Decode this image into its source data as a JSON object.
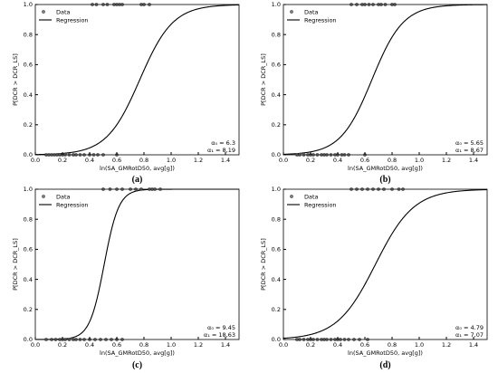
{
  "chart_data": [
    {
      "type": "line",
      "panel_label": "(a)",
      "ylabel": "P[DCR > DCR_LS]",
      "xlabel": "ln(SA_GMRotD50, avg[g])",
      "xlim": [
        0,
        1.5
      ],
      "ylim": [
        0,
        1.0
      ],
      "xticks": [
        "0.0",
        "0.2",
        "0.4",
        "0.6",
        "0.8",
        "1.0",
        "1.2",
        "1.4"
      ],
      "yticks": [
        "0.0",
        "0.2",
        "0.4",
        "0.6",
        "0.8",
        "1.0"
      ],
      "legend": [
        "Data",
        "Regression"
      ],
      "legend_position": "top-left",
      "coef_text": [
        "α₀ = 6.3",
        "α₁ = 8,19"
      ],
      "series": [
        {
          "name": "Data",
          "kind": "scatter",
          "y": 0,
          "x": [
            0.08,
            0.1,
            0.12,
            0.14,
            0.16,
            0.18,
            0.2,
            0.22,
            0.25,
            0.28,
            0.3,
            0.33,
            0.36,
            0.4,
            0.43,
            0.46,
            0.5,
            0.6
          ]
        },
        {
          "name": "Data",
          "kind": "scatter",
          "y": 1,
          "x": [
            0.42,
            0.45,
            0.5,
            0.53,
            0.58,
            0.6,
            0.62,
            0.64,
            0.78,
            0.8,
            0.84
          ]
        },
        {
          "name": "Regression",
          "kind": "logistic",
          "a0": 6.3,
          "a1": 8.19
        }
      ]
    },
    {
      "type": "line",
      "panel_label": "(b)",
      "ylabel": "P[DCR > DCR_LS]",
      "xlabel": "ln(SA_GMRotD50, avg[g])",
      "xlim": [
        0,
        1.5
      ],
      "ylim": [
        0,
        1.0
      ],
      "xticks": [
        "0.0",
        "0.2",
        "0.4",
        "0.6",
        "0.8",
        "1.0",
        "1.2",
        "1.4"
      ],
      "yticks": [
        "0.0",
        "0.2",
        "0.4",
        "0.6",
        "0.8",
        "1.0"
      ],
      "legend": [
        "Data",
        "Regression"
      ],
      "legend_position": "top-left",
      "coef_text": [
        "α₀ = 5.65",
        "α₁ = 8,67"
      ],
      "series": [
        {
          "name": "Data",
          "kind": "scatter",
          "y": 0,
          "x": [
            0.1,
            0.12,
            0.15,
            0.18,
            0.2,
            0.22,
            0.25,
            0.28,
            0.3,
            0.32,
            0.35,
            0.38,
            0.4,
            0.43,
            0.45,
            0.48,
            0.6
          ]
        },
        {
          "name": "Data",
          "kind": "scatter",
          "y": 1,
          "x": [
            0.5,
            0.54,
            0.58,
            0.6,
            0.63,
            0.66,
            0.7,
            0.72,
            0.75,
            0.8,
            0.82
          ]
        },
        {
          "name": "Regression",
          "kind": "logistic",
          "a0": 5.65,
          "a1": 8.67
        }
      ]
    },
    {
      "type": "line",
      "panel_label": "(c)",
      "ylabel": "P[DCR > DCR_LS]",
      "xlabel": "ln(SA_GMRotD50, avg[g])",
      "xlim": [
        0,
        1.5
      ],
      "ylim": [
        0,
        1.0
      ],
      "xticks": [
        "0.0",
        "0.2",
        "0.4",
        "0.6",
        "0.8",
        "1.0",
        "1.2",
        "1.4"
      ],
      "yticks": [
        "0.0",
        "0.2",
        "0.4",
        "0.6",
        "0.8",
        "1.0"
      ],
      "legend": [
        "Data",
        "Regression"
      ],
      "legend_position": "top-left",
      "coef_text": [
        "α₀ = 9.45",
        "α₁ = 18,63"
      ],
      "series": [
        {
          "name": "Data",
          "kind": "scatter",
          "y": 0,
          "x": [
            0.08,
            0.12,
            0.15,
            0.18,
            0.2,
            0.22,
            0.25,
            0.28,
            0.3,
            0.33,
            0.36,
            0.4,
            0.44,
            0.48,
            0.52,
            0.56,
            0.6,
            0.64
          ]
        },
        {
          "name": "Data",
          "kind": "scatter",
          "y": 1,
          "x": [
            0.5,
            0.55,
            0.6,
            0.64,
            0.7,
            0.74,
            0.78,
            0.84,
            0.86,
            0.88,
            0.92
          ]
        },
        {
          "name": "Regression",
          "kind": "logistic",
          "a0": 9.45,
          "a1": 18.63
        }
      ]
    },
    {
      "type": "line",
      "panel_label": "(d)",
      "ylabel": "P[DCR > DCR_LS]",
      "xlabel": "ln(SA_GMRotD50, avg[g])",
      "xlim": [
        0,
        1.5
      ],
      "ylim": [
        0,
        1.0
      ],
      "xticks": [
        "0.0",
        "0.2",
        "0.4",
        "0.6",
        "0.8",
        "1.0",
        "1.2",
        "1.4"
      ],
      "yticks": [
        "0.0",
        "0.2",
        "0.4",
        "0.6",
        "0.8",
        "1.0"
      ],
      "legend": [
        "Data",
        "Regression"
      ],
      "legend_position": "top-left",
      "coef_text": [
        "α₀ = 4.79",
        "α₁ = 7,07"
      ],
      "series": [
        {
          "name": "Data",
          "kind": "scatter",
          "y": 0,
          "x": [
            0.1,
            0.12,
            0.15,
            0.18,
            0.2,
            0.22,
            0.25,
            0.28,
            0.3,
            0.32,
            0.35,
            0.38,
            0.4,
            0.42,
            0.45,
            0.48,
            0.52,
            0.56,
            0.62
          ]
        },
        {
          "name": "Data",
          "kind": "scatter",
          "y": 1,
          "x": [
            0.5,
            0.54,
            0.58,
            0.62,
            0.66,
            0.7,
            0.74,
            0.8,
            0.85,
            0.88
          ]
        },
        {
          "name": "Regression",
          "kind": "logistic",
          "a0": 4.79,
          "a1": 7.07
        }
      ]
    }
  ]
}
